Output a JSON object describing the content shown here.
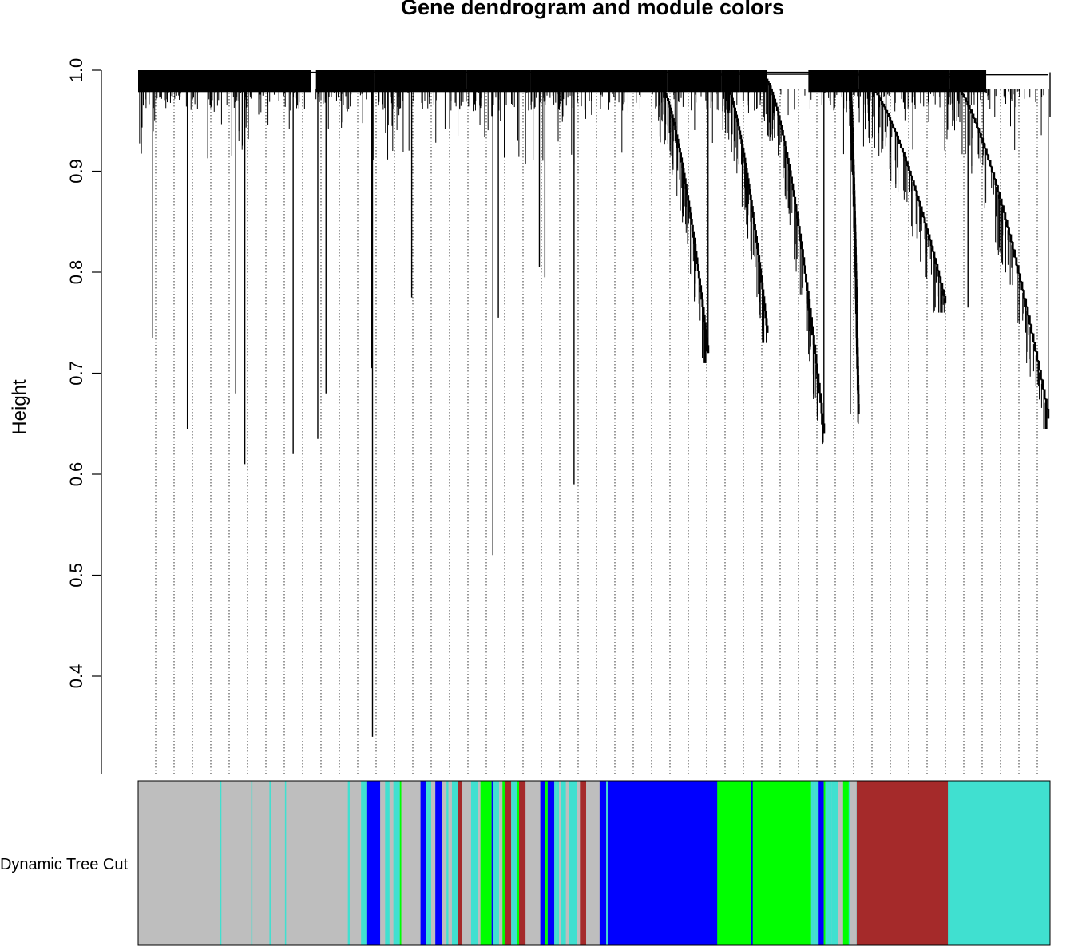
{
  "chart_data": {
    "type": "dendrogram",
    "title": "Gene dendrogram and module colors",
    "ylabel": "Height",
    "xlabel": "",
    "ylim": [
      0.3,
      1.0
    ],
    "yticks": [
      {
        "value": 1.0,
        "label": "1.0"
      },
      {
        "value": 0.9,
        "label": "0.9"
      },
      {
        "value": 0.8,
        "label": "0.8"
      },
      {
        "value": 0.7,
        "label": "0.7"
      },
      {
        "value": 0.6,
        "label": "0.6"
      },
      {
        "value": 0.5,
        "label": "0.5"
      },
      {
        "value": 0.4,
        "label": "0.4"
      }
    ],
    "grid": "vertical dotted guide lines",
    "merge_band": [
      0.98,
      1.0
    ],
    "lowest_branch_height": 0.34,
    "deep_branches": [
      {
        "x": 0.016,
        "height": 0.735
      },
      {
        "x": 0.054,
        "height": 0.645
      },
      {
        "x": 0.107,
        "height": 0.68
      },
      {
        "x": 0.117,
        "height": 0.61
      },
      {
        "x": 0.17,
        "height": 0.62
      },
      {
        "x": 0.197,
        "height": 0.635
      },
      {
        "x": 0.206,
        "height": 0.68
      },
      {
        "x": 0.256,
        "height": 0.705
      },
      {
        "x": 0.257,
        "height": 0.34
      },
      {
        "x": 0.3,
        "height": 0.775
      },
      {
        "x": 0.389,
        "height": 0.52
      },
      {
        "x": 0.395,
        "height": 0.755
      },
      {
        "x": 0.44,
        "height": 0.805
      },
      {
        "x": 0.446,
        "height": 0.795
      },
      {
        "x": 0.478,
        "height": 0.59
      },
      {
        "x": 0.625,
        "height": 0.72
      },
      {
        "x": 0.752,
        "height": 0.64
      },
      {
        "x": 0.781,
        "height": 0.66
      },
      {
        "x": 0.91,
        "height": 0.765
      },
      {
        "x": 0.998,
        "height": 0.655
      }
    ],
    "clusters": [
      {
        "start": 0.57,
        "end": 0.625,
        "top": 0.99,
        "bottom": 0.72
      },
      {
        "start": 0.64,
        "end": 0.69,
        "top": 0.995,
        "bottom": 0.74
      },
      {
        "start": 0.685,
        "end": 0.752,
        "top": 0.995,
        "bottom": 0.64
      },
      {
        "start": 0.78,
        "end": 0.79,
        "top": 0.995,
        "bottom": 0.66
      },
      {
        "start": 0.79,
        "end": 0.885,
        "top": 0.995,
        "bottom": 0.77
      },
      {
        "start": 0.885,
        "end": 0.998,
        "top": 0.995,
        "bottom": 0.655
      }
    ],
    "color_bar": {
      "label": "Dynamic Tree Cut",
      "segments": [
        {
          "start": 0.0,
          "end": 0.23,
          "color": "#bebebe"
        },
        {
          "start": 0.23,
          "end": 0.515,
          "color": "mixed"
        },
        {
          "start": 0.515,
          "end": 0.635,
          "color": "#0000ff"
        },
        {
          "start": 0.635,
          "end": 0.672,
          "color": "#00ff00"
        },
        {
          "start": 0.672,
          "end": 0.674,
          "color": "#0000ff"
        },
        {
          "start": 0.674,
          "end": 0.738,
          "color": "#00ff00"
        },
        {
          "start": 0.738,
          "end": 0.788,
          "color": "mixed"
        },
        {
          "start": 0.788,
          "end": 0.888,
          "color": "#a52a2a"
        },
        {
          "start": 0.888,
          "end": 1.0,
          "color": "#40e0d0"
        }
      ],
      "module_colors": [
        "#bebebe",
        "#40e0d0",
        "#0000ff",
        "#00ff00",
        "#a52a2a"
      ]
    }
  }
}
